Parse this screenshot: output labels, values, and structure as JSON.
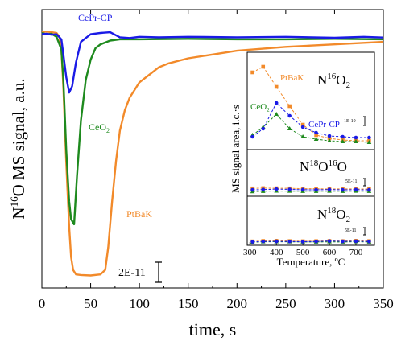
{
  "chart_data": [
    {
      "type": "line",
      "xlabel": "time, s",
      "ylabel_prefix": "N",
      "ylabel_sup": "16",
      "ylabel_suffix": "O MS signal, a.u.",
      "xlim": [
        0,
        350
      ],
      "ylim": [
        0,
        1
      ],
      "x_ticks": [
        "0",
        "50",
        "100",
        "150",
        "200",
        "250",
        "300",
        "350"
      ],
      "x_tick_values": [
        0,
        50,
        100,
        150,
        200,
        250,
        300,
        350
      ],
      "scale_bar_label": "2E-11",
      "series": [
        {
          "name": "CePr-CP",
          "color": "#1a1ae6",
          "x": [
            0,
            5,
            10,
            15,
            20,
            22,
            25,
            28,
            31,
            35,
            40,
            50,
            60,
            70,
            80,
            90,
            100,
            120,
            150,
            200,
            250,
            300,
            330,
            350
          ],
          "y": [
            0.96,
            0.962,
            0.958,
            0.96,
            0.94,
            0.88,
            0.79,
            0.73,
            0.755,
            0.85,
            0.93,
            0.96,
            0.965,
            0.968,
            0.948,
            0.945,
            0.95,
            0.948,
            0.95,
            0.948,
            0.95,
            0.946,
            0.95,
            0.947
          ]
        },
        {
          "name": "CeO",
          "name_sub": "2",
          "color": "#1e8a1e",
          "x": [
            0,
            5,
            10,
            15,
            20,
            22,
            25,
            28,
            30,
            33,
            36,
            40,
            45,
            50,
            55,
            60,
            70,
            80,
            100,
            150,
            200,
            250,
            300,
            350
          ],
          "y": [
            0.965,
            0.96,
            0.962,
            0.95,
            0.9,
            0.78,
            0.5,
            0.3,
            0.23,
            0.21,
            0.4,
            0.62,
            0.78,
            0.86,
            0.905,
            0.92,
            0.935,
            0.94,
            0.94,
            0.942,
            0.94,
            0.94,
            0.942,
            0.94
          ]
        },
        {
          "name": "PtBaK",
          "color": "#f28a2a",
          "x": [
            0,
            5,
            10,
            15,
            18,
            20,
            22,
            25,
            28,
            30,
            32,
            35,
            40,
            50,
            60,
            65,
            68,
            72,
            76,
            80,
            85,
            90,
            95,
            100,
            110,
            120,
            130,
            150,
            175,
            200,
            250,
            300,
            350
          ],
          "y": [
            0.97,
            0.97,
            0.968,
            0.965,
            0.95,
            0.9,
            0.75,
            0.45,
            0.2,
            0.08,
            0.03,
            0.012,
            0.01,
            0.008,
            0.012,
            0.03,
            0.12,
            0.3,
            0.46,
            0.58,
            0.66,
            0.71,
            0.74,
            0.77,
            0.8,
            0.83,
            0.845,
            0.865,
            0.88,
            0.895,
            0.91,
            0.92,
            0.93
          ]
        }
      ]
    },
    {
      "type": "scatter",
      "ylabel": "MS signal area, i.c.·s",
      "xlabel": "Temperature, ºC",
      "x_ticks": [
        "300",
        "400",
        "500",
        "600",
        "700"
      ],
      "x_tick_values": [
        300,
        400,
        500,
        600,
        700
      ],
      "xlim": [
        290,
        770
      ],
      "panels": [
        {
          "title_prefix": "N",
          "title_sup": "16",
          "title_suffix": "O",
          "title_sub": "2",
          "scale_label": "1E-10",
          "labels": [
            {
              "text": "PtBaK",
              "color": "#f28a2a"
            },
            {
              "text": "CeO",
              "sub": "2",
              "color": "#1e8a1e"
            },
            {
              "text": "CePr-CP",
              "color": "#1a1ae6"
            }
          ],
          "series": [
            {
              "name": "PtBaK",
              "color": "#f28a2a",
              "marker": "square",
              "x": [
                310,
                350,
                400,
                450,
                500,
                550,
                600,
                650,
                700,
                750
              ],
              "y": [
                0.9,
                0.97,
                0.72,
                0.48,
                0.25,
                0.12,
                0.08,
                0.06,
                0.05,
                0.05
              ]
            },
            {
              "name": "CeO2",
              "color": "#1e8a1e",
              "marker": "triangle",
              "x": [
                310,
                350,
                400,
                450,
                500,
                550,
                600,
                650,
                700,
                750
              ],
              "y": [
                0.12,
                0.22,
                0.38,
                0.2,
                0.1,
                0.07,
                0.05,
                0.04,
                0.04,
                0.03
              ]
            },
            {
              "name": "CePr-CP",
              "color": "#1a1ae6",
              "marker": "circle",
              "x": [
                310,
                350,
                400,
                450,
                500,
                550,
                600,
                650,
                700,
                750
              ],
              "y": [
                0.1,
                0.2,
                0.52,
                0.36,
                0.22,
                0.15,
                0.11,
                0.1,
                0.09,
                0.09
              ]
            }
          ]
        },
        {
          "title_prefix": "N",
          "title_sup": "18",
          "title_mid": "O",
          "title_sup2": "16",
          "title_suffix": "O",
          "scale_label": "5E-11",
          "series": [
            {
              "name": "PtBaK",
              "color": "#f28a2a",
              "marker": "square",
              "x": [
                310,
                350,
                400,
                450,
                500,
                550,
                600,
                650,
                700,
                750
              ],
              "y": [
                0.32,
                0.34,
                0.33,
                0.32,
                0.3,
                0.3,
                0.28,
                0.29,
                0.28,
                0.28
              ]
            },
            {
              "name": "CeO2",
              "color": "#1e8a1e",
              "marker": "triangle",
              "x": [
                310,
                350,
                400,
                450,
                500,
                550,
                600,
                650,
                700,
                750
              ],
              "y": [
                0.1,
                0.12,
                0.14,
                0.13,
                0.12,
                0.12,
                0.13,
                0.12,
                0.13,
                0.12
              ]
            },
            {
              "name": "CePr-CP",
              "color": "#1a1ae6",
              "marker": "circle",
              "x": [
                310,
                350,
                400,
                450,
                500,
                550,
                600,
                650,
                700,
                750
              ],
              "y": [
                0.22,
                0.24,
                0.27,
                0.25,
                0.23,
                0.22,
                0.24,
                0.22,
                0.23,
                0.22
              ]
            }
          ]
        },
        {
          "title_prefix": "N",
          "title_sup": "18",
          "title_suffix": "O",
          "title_sub": "2",
          "scale_label": "5E-11",
          "series": [
            {
              "name": "PtBaK",
              "color": "#f28a2a",
              "marker": "square",
              "x": [
                310,
                350,
                400,
                450,
                500,
                550,
                600,
                650,
                700,
                750
              ],
              "y": [
                0.1,
                0.13,
                0.14,
                0.12,
                0.11,
                0.12,
                0.13,
                0.12,
                0.14,
                0.12
              ]
            },
            {
              "name": "CeO2",
              "color": "#1e8a1e",
              "marker": "triangle",
              "x": [
                310,
                350,
                400,
                450,
                500,
                550,
                600,
                650,
                700,
                750
              ],
              "y": [
                0.05,
                0.07,
                0.08,
                0.07,
                0.06,
                0.06,
                0.07,
                0.06,
                0.08,
                0.06
              ]
            },
            {
              "name": "CePr-CP",
              "color": "#1a1ae6",
              "marker": "circle",
              "x": [
                310,
                350,
                400,
                450,
                500,
                550,
                600,
                650,
                700,
                750
              ],
              "y": [
                0.07,
                0.09,
                0.1,
                0.09,
                0.08,
                0.09,
                0.12,
                0.1,
                0.11,
                0.09
              ]
            }
          ]
        }
      ]
    }
  ]
}
